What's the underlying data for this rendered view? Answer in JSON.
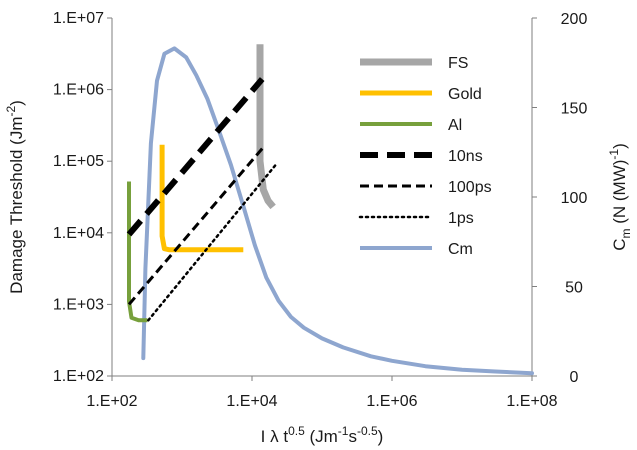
{
  "chart_data": {
    "type": "line",
    "x_axis": {
      "label_parts": [
        {
          "text": "I λ t",
          "dy": 0
        },
        {
          "text": "0.5",
          "dy": -7,
          "size": 12
        },
        {
          "text": " (Jm",
          "dy": 7
        },
        {
          "text": "-1",
          "dy": -7,
          "size": 12
        },
        {
          "text": "s",
          "dy": 7
        },
        {
          "text": "-0.5",
          "dy": -7,
          "size": 12
        },
        {
          "text": ")",
          "dy": 7
        }
      ],
      "scale": "log",
      "range": [
        100,
        100000000
      ],
      "ticks": [
        {
          "value": 100,
          "label": "1.E+02"
        },
        {
          "value": 10000,
          "label": "1.E+04"
        },
        {
          "value": 1000000,
          "label": "1.E+06"
        },
        {
          "value": 100000000,
          "label": "1.E+08"
        }
      ]
    },
    "y_axis_left": {
      "label_parts": [
        {
          "text": "Damage Threshold  (Jm",
          "dy": 0
        },
        {
          "text": "-2",
          "dy": -7,
          "size": 12
        },
        {
          "text": ")",
          "dy": 7
        }
      ],
      "scale": "log",
      "range": [
        100,
        10000000
      ],
      "ticks": [
        {
          "value": 100,
          "label": "1.E+02"
        },
        {
          "value": 1000,
          "label": "1.E+03"
        },
        {
          "value": 10000,
          "label": "1.E+04"
        },
        {
          "value": 100000,
          "label": "1.E+05"
        },
        {
          "value": 1000000,
          "label": "1.E+06"
        },
        {
          "value": 10000000,
          "label": "1.E+07"
        }
      ]
    },
    "y_axis_right": {
      "label_parts": [
        {
          "text": "C",
          "dy": 0
        },
        {
          "text": "m",
          "dy": 5,
          "size": 12
        },
        {
          "text": " (N (MW)",
          "dy": -5
        },
        {
          "text": "-1",
          "dy": -7,
          "size": 12
        },
        {
          "text": ")",
          "dy": 7
        }
      ],
      "scale": "linear",
      "range": [
        0,
        200
      ],
      "ticks": [
        {
          "value": 0,
          "label": "0"
        },
        {
          "value": 50,
          "label": "50"
        },
        {
          "value": 100,
          "label": "100"
        },
        {
          "value": 150,
          "label": "150"
        },
        {
          "value": 200,
          "label": "200"
        }
      ]
    },
    "grid": false,
    "legend": {
      "position": "top-right",
      "entries": [
        {
          "name": "FS",
          "color": "#a6a6a6",
          "width": 7,
          "dash": ""
        },
        {
          "name": "Gold",
          "color": "#ffc000",
          "width": 5,
          "dash": ""
        },
        {
          "name": "Al",
          "color": "#77a03c",
          "width": 4,
          "dash": ""
        },
        {
          "name": "10ns",
          "color": "#000000",
          "width": 6,
          "dash": "18,9"
        },
        {
          "name": "100ps",
          "color": "#000000",
          "width": 3,
          "dash": "9,5"
        },
        {
          "name": "1ps",
          "color": "#000000",
          "width": 2.5,
          "dash": "2,4"
        },
        {
          "name": "Cm",
          "color": "#8ea6cf",
          "width": 4,
          "dash": ""
        }
      ]
    },
    "series": [
      {
        "name": "FS",
        "axis": "left",
        "color": "#a6a6a6",
        "width": 7,
        "dash": "",
        "points": [
          [
            13000,
            4300000
          ],
          [
            13000,
            100000
          ],
          [
            14500,
            40000
          ],
          [
            17000,
            28000
          ],
          [
            20000,
            23000
          ]
        ]
      },
      {
        "name": "Gold",
        "axis": "left",
        "color": "#ffc000",
        "width": 5,
        "dash": "",
        "points": [
          [
            520,
            170000
          ],
          [
            520,
            9000
          ],
          [
            560,
            6000
          ],
          [
            650,
            5800
          ],
          [
            7500,
            5800
          ]
        ]
      },
      {
        "name": "Al",
        "axis": "left",
        "color": "#77a03c",
        "width": 4,
        "dash": "",
        "points": [
          [
            175,
            52000
          ],
          [
            175,
            1100
          ],
          [
            190,
            650
          ],
          [
            240,
            600
          ],
          [
            320,
            600
          ]
        ]
      },
      {
        "name": "10ns",
        "axis": "left",
        "color": "#000000",
        "width": 6,
        "dash": "18,9",
        "points": [
          [
            175,
            9500
          ],
          [
            14000,
            1400000
          ]
        ]
      },
      {
        "name": "100ps",
        "axis": "left",
        "color": "#000000",
        "width": 3,
        "dash": "9,5",
        "points": [
          [
            175,
            1000
          ],
          [
            14000,
            150000
          ]
        ]
      },
      {
        "name": "1ps",
        "axis": "left",
        "color": "#000000",
        "width": 2.5,
        "dash": "2,4",
        "points": [
          [
            330,
            600
          ],
          [
            22000,
            90000
          ]
        ]
      },
      {
        "name": "Cm",
        "axis": "right",
        "color": "#8ea6cf",
        "width": 4,
        "dash": "",
        "points": [
          [
            280,
            10
          ],
          [
            300,
            60
          ],
          [
            360,
            130
          ],
          [
            440,
            165
          ],
          [
            560,
            180
          ],
          [
            780,
            183
          ],
          [
            1150,
            178
          ],
          [
            1600,
            168
          ],
          [
            2300,
            155
          ],
          [
            3300,
            138
          ],
          [
            5000,
            118
          ],
          [
            7500,
            95
          ],
          [
            11000,
            73
          ],
          [
            16000,
            55
          ],
          [
            24000,
            42
          ],
          [
            36000,
            33
          ],
          [
            55000,
            27
          ],
          [
            100000,
            21
          ],
          [
            200000,
            16
          ],
          [
            500000,
            11
          ],
          [
            1000000,
            8.5
          ],
          [
            3000000,
            5.5
          ],
          [
            10000000,
            3.5
          ],
          [
            30000000,
            2.5
          ],
          [
            100000000,
            1.5
          ]
        ]
      }
    ]
  }
}
